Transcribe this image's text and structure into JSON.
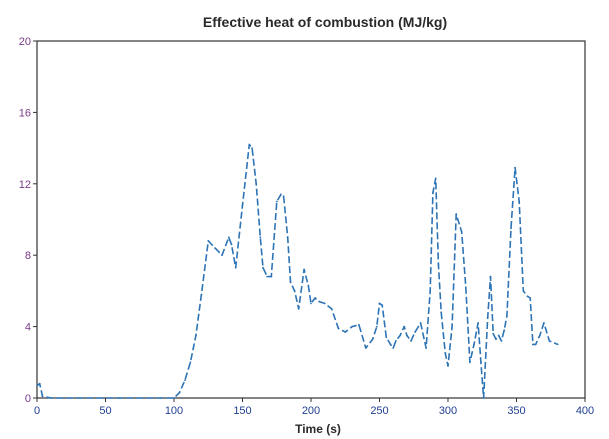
{
  "chart_data": {
    "type": "line",
    "title": "Effective heat of combustion (MJ/kg)",
    "xlabel": "Time (s)",
    "ylabel": "",
    "xlim": [
      0,
      400
    ],
    "ylim": [
      0,
      20
    ],
    "x_ticks": [
      0,
      50,
      100,
      150,
      200,
      250,
      300,
      350,
      400
    ],
    "y_ticks": [
      0,
      4,
      8,
      12,
      16,
      20
    ],
    "grid": false,
    "legend": "none",
    "colors": {
      "line": "#2e74b5",
      "x_tick_label": "#1f3f8f",
      "y_tick_label": "#7a3a8a",
      "frame": "#333333",
      "title": "#2a2a2a"
    },
    "series": [
      {
        "line_style": "dashed",
        "x": [
          0,
          2,
          4,
          10,
          30,
          60,
          90,
          100,
          104,
          108,
          112,
          116,
          120,
          125,
          130,
          135,
          140,
          142,
          145,
          150,
          155,
          157,
          160,
          163,
          165,
          168,
          171,
          175,
          178,
          180,
          183,
          185,
          188,
          191,
          195,
          198,
          200,
          203,
          206,
          210,
          215,
          220,
          225,
          230,
          235,
          240,
          245,
          248,
          250,
          252,
          255,
          258,
          260,
          262,
          265,
          268,
          270,
          273,
          276,
          280,
          284,
          287,
          289,
          291,
          293,
          295,
          298,
          300,
          303,
          306,
          310,
          313,
          316,
          319,
          322,
          324,
          326,
          329,
          331,
          333,
          335,
          337,
          339,
          341,
          343,
          346,
          349,
          352,
          355,
          358,
          360,
          362,
          364,
          367,
          370,
          374,
          380
        ],
        "y": [
          0.7,
          0.8,
          0.1,
          0,
          0,
          0,
          0,
          0,
          0.3,
          1.0,
          2.0,
          3.5,
          5.8,
          8.8,
          8.4,
          8.0,
          9.0,
          8.6,
          7.3,
          10.8,
          14.2,
          14.0,
          12.0,
          9.0,
          7.3,
          6.8,
          6.8,
          11.0,
          11.4,
          11.3,
          9.0,
          6.5,
          6.0,
          5.0,
          7.2,
          6.3,
          5.3,
          5.6,
          5.4,
          5.3,
          5.0,
          3.9,
          3.7,
          4.0,
          4.1,
          2.8,
          3.3,
          4.0,
          5.3,
          5.2,
          3.4,
          3.0,
          2.8,
          3.2,
          3.5,
          4.0,
          3.5,
          3.2,
          3.7,
          4.2,
          2.8,
          6.0,
          11.5,
          12.3,
          7.5,
          4.8,
          2.5,
          1.8,
          4.0,
          10.3,
          9.3,
          6.2,
          2.0,
          3.0,
          4.2,
          2.0,
          0.0,
          4.5,
          6.8,
          3.6,
          3.3,
          3.5,
          3.2,
          3.8,
          4.6,
          9.5,
          12.9,
          11.0,
          6.0,
          5.7,
          5.6,
          3.0,
          3.0,
          3.5,
          4.2,
          3.2,
          3.0
        ]
      }
    ]
  }
}
